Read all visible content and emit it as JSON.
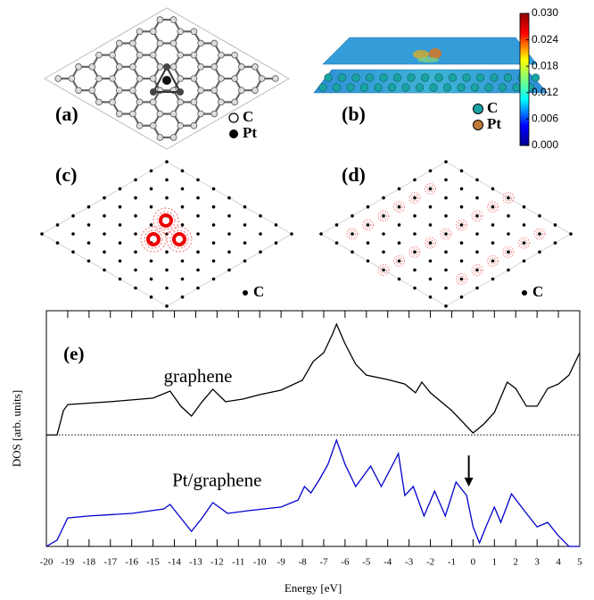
{
  "panels": {
    "a": {
      "label": "(a)",
      "legend": [
        "C",
        "Pt"
      ]
    },
    "b": {
      "label": "(b)",
      "legend": [
        "C",
        "Pt"
      ],
      "colorbar": {
        "lim": [
          0,
          0.03
        ],
        "ticks": [
          {
            "value": 0.03,
            "label": "0.030"
          },
          {
            "value": 0.024,
            "label": "0.024"
          },
          {
            "value": 0.018,
            "label": "0.018"
          },
          {
            "value": 0.012,
            "label": "0.012"
          },
          {
            "value": 0.006,
            "label": "0.006"
          },
          {
            "value": 0,
            "label": "0.000"
          }
        ]
      }
    },
    "c": {
      "label": "(c)",
      "legend": [
        "C"
      ]
    },
    "d": {
      "label": "(d)",
      "legend": [
        "C"
      ]
    }
  },
  "chart_data": {
    "type": "line",
    "xlabel": "Energy [eV]",
    "ylabel": "DOS [arb. units]",
    "xlim": [
      -20,
      5
    ],
    "xticks": [
      -20,
      -19,
      -18,
      -17,
      -16,
      -15,
      -14,
      -13,
      -12,
      -11,
      -10,
      -9,
      -8,
      -7,
      -6,
      -5,
      -4,
      -3,
      -2,
      -1,
      0,
      1,
      2,
      3,
      4,
      5
    ],
    "ylim": [
      0,
      100
    ],
    "hlines": [
      {
        "y": 47.3,
        "style": "dotted"
      }
    ],
    "arrows": [
      {
        "x": -0.2,
        "y": [
          38.6,
          25.4
        ]
      }
    ],
    "annotations": [
      {
        "text": "(e)",
        "x": -19.2,
        "y": 81,
        "bold": true
      },
      {
        "text": "graphene",
        "x": -14.5,
        "y": 71.6
      },
      {
        "text": "Pt/graphene",
        "x": -14.1,
        "y": 27.3
      }
    ],
    "series": [
      {
        "name": "graphene",
        "color": "#000000",
        "x": [
          -20,
          -19.5,
          -19.2,
          -19,
          -17,
          -15,
          -14.2,
          -13.7,
          -13.2,
          -12.7,
          -12.2,
          -11.6,
          -10.8,
          -10,
          -9,
          -8,
          -7.5,
          -7,
          -6.6,
          -6.4,
          -6,
          -5.5,
          -5,
          -4,
          -3.2,
          -2.7,
          -2.4,
          -2,
          -1,
          0,
          0.5,
          1,
          1.6,
          2,
          2.5,
          3,
          3.5,
          4,
          4.5,
          5
        ],
        "values": [
          47.3,
          47.3,
          57.6,
          60.2,
          61.4,
          62.9,
          65.9,
          59.5,
          55.3,
          61.4,
          66.7,
          61.4,
          62.5,
          64.4,
          66.3,
          70.5,
          78.4,
          82.2,
          89.8,
          94.3,
          86,
          77.3,
          72.7,
          70.8,
          68.9,
          65.2,
          69.7,
          65.2,
          57.6,
          48.1,
          51.9,
          56.8,
          69.7,
          67,
          59.5,
          59.5,
          67,
          68.9,
          72.7,
          82.2
        ]
      },
      {
        "name": "Pt/graphene",
        "color": "#0000cc",
        "x": [
          -20,
          -19.5,
          -19,
          -18,
          -16,
          -14.5,
          -14.2,
          -13.7,
          -13.2,
          -12.7,
          -12.2,
          -11.5,
          -10.5,
          -9,
          -8.2,
          -7.9,
          -7.6,
          -7.2,
          -6.8,
          -6.4,
          -6,
          -5.5,
          -4.8,
          -4.3,
          -3.5,
          -3.2,
          -2.8,
          -2.3,
          -1.8,
          -1.3,
          -0.8,
          -0.3,
          0,
          0.3,
          0.6,
          1,
          1.3,
          1.8,
          2.5,
          3,
          3.5,
          4,
          4.5,
          5
        ],
        "values": [
          0,
          2.7,
          12.1,
          12.9,
          14,
          15.9,
          17.8,
          12.1,
          6.4,
          12.1,
          18.6,
          14,
          15.2,
          16.7,
          19.7,
          25.4,
          22.7,
          28.4,
          34.8,
          45.1,
          34.8,
          25.4,
          34.1,
          25.4,
          39.4,
          21.6,
          25.4,
          12.9,
          23.5,
          12.9,
          27.3,
          21.6,
          8.3,
          1.5,
          8.3,
          16.7,
          10.2,
          22.3,
          14,
          8.3,
          10.2,
          4.5,
          0,
          0
        ]
      }
    ]
  }
}
